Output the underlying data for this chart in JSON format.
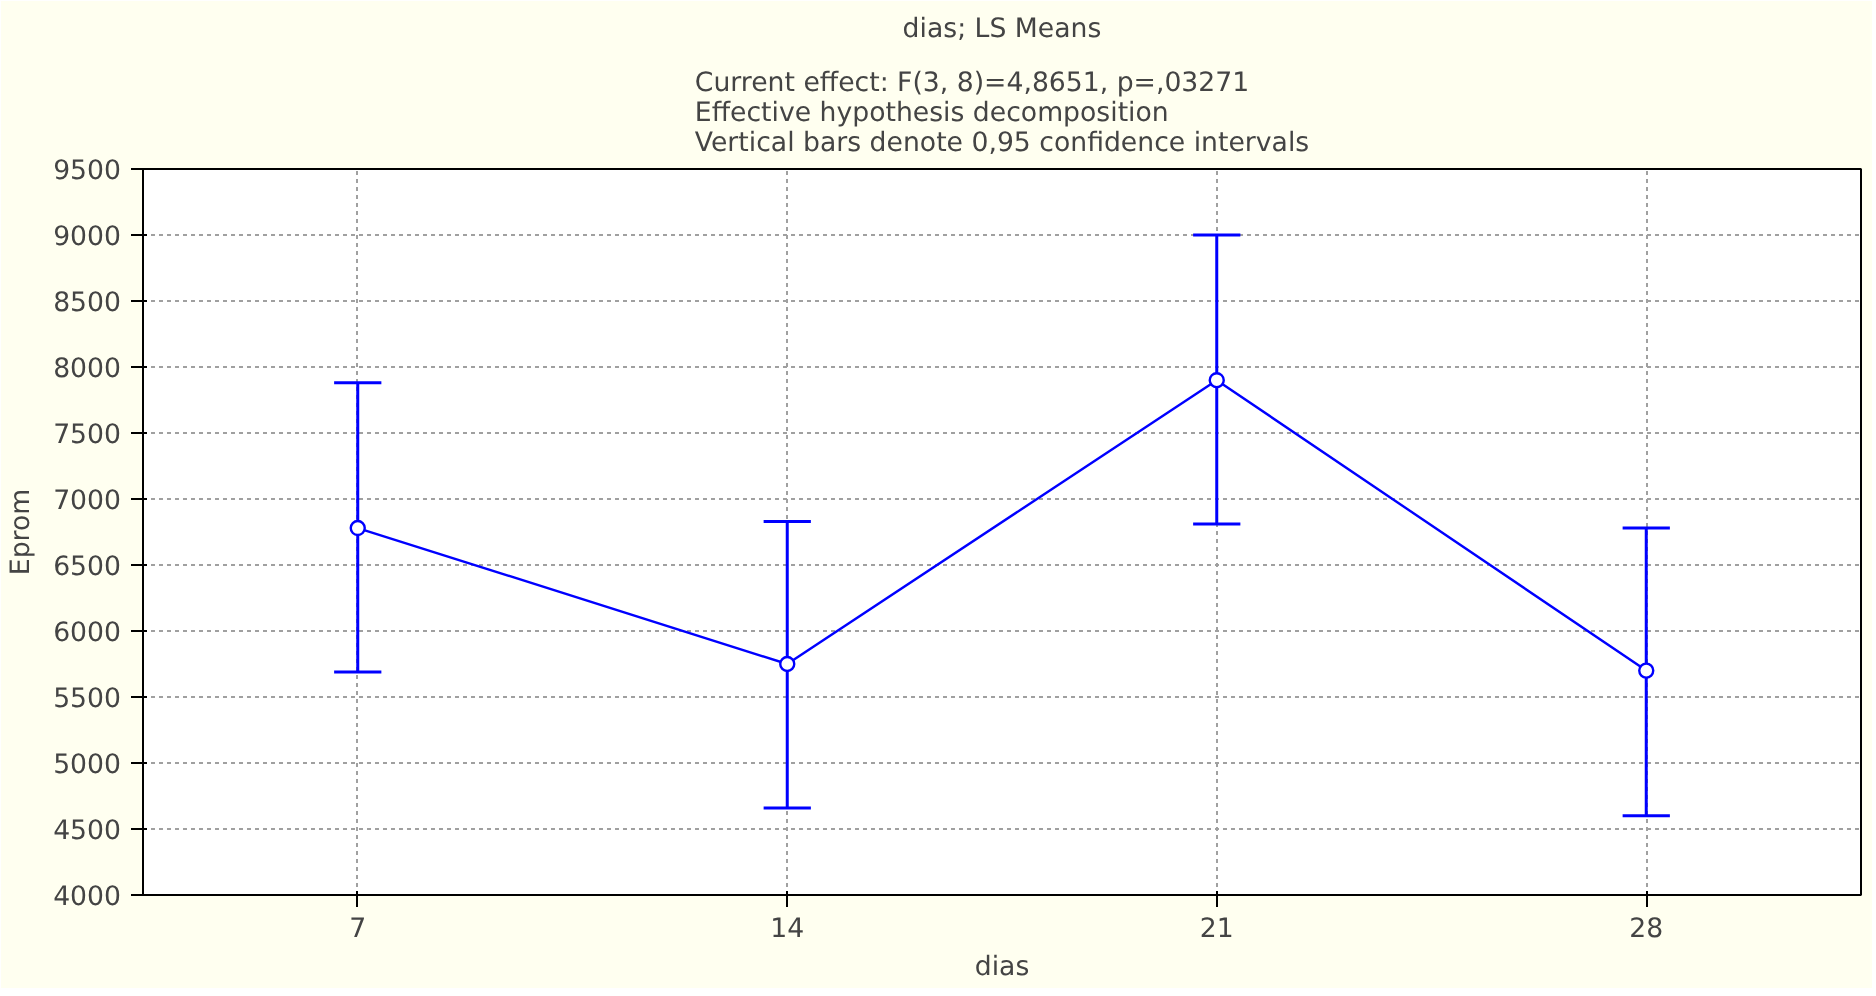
{
  "chart_data": {
    "type": "line",
    "title": "dias; LS Means",
    "subtitle": "Current effect: F(3, 8)=4,8651, p=,03271\nEffective hypothesis decomposition\nVertical bars denote 0,95 confidence intervals",
    "xlabel": "dias",
    "ylabel": "Eprom",
    "categories": [
      "7",
      "14",
      "21",
      "28"
    ],
    "series": [
      {
        "color": "#0000ff",
        "values": [
          6780,
          5750,
          7900,
          5700
        ],
        "errors": [
          [
            5690,
            7880
          ],
          [
            4660,
            6830
          ],
          [
            6810,
            9000
          ],
          [
            4600,
            6780
          ]
        ]
      }
    ],
    "ylim": [
      4000,
      9500
    ],
    "yticks": [
      4000,
      4500,
      5000,
      5500,
      6000,
      6500,
      7000,
      7500,
      8000,
      8500,
      9000,
      9500
    ],
    "grid": true,
    "marker": "circle",
    "line_style": "solid"
  }
}
